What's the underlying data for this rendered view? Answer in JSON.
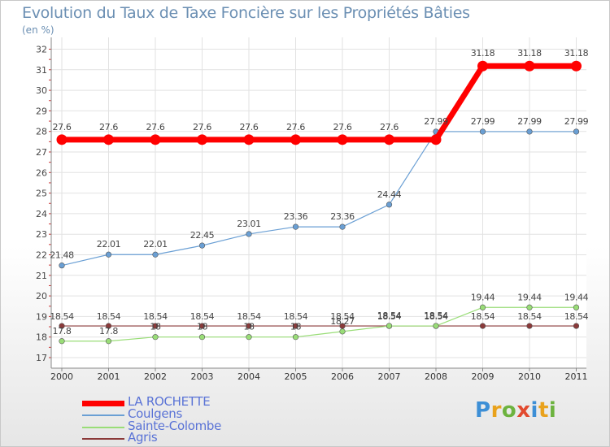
{
  "title": "Evolution du Taux de Taxe Foncière sur les Propriétés Bâties",
  "unit": "(en %)",
  "chart_data": {
    "type": "line",
    "x": [
      "2000",
      "2001",
      "2002",
      "2003",
      "2004",
      "2005",
      "2006",
      "2007",
      "2008",
      "2009",
      "2010",
      "2011"
    ],
    "ylim": [
      16.5,
      32
    ],
    "yticks": [
      17,
      18,
      19,
      20,
      21,
      22,
      23,
      24,
      25,
      26,
      27,
      28,
      29,
      30,
      31,
      32
    ],
    "grid": true,
    "legend_position": "bottom-left",
    "series": [
      {
        "name": "LA ROCHETTE",
        "color": "#ff0000",
        "width": 7,
        "values": [
          27.6,
          27.6,
          27.6,
          27.6,
          27.6,
          27.6,
          27.6,
          27.6,
          27.6,
          31.18,
          31.18,
          31.18
        ],
        "labels": [
          "27.6",
          "27.6",
          "27.6",
          "27.6",
          "27.6",
          "27.6",
          "27.6",
          "27.6",
          "",
          "31.18",
          "31.18",
          "31.18"
        ]
      },
      {
        "name": "Coulgens",
        "color": "#6a9fd4",
        "width": 1.2,
        "values": [
          21.48,
          22.01,
          22.01,
          22.45,
          23.01,
          23.36,
          23.36,
          24.44,
          27.99,
          27.99,
          27.99,
          27.99
        ],
        "labels": [
          "21.48",
          "22.01",
          "22.01",
          "22.45",
          "23.01",
          "23.36",
          "23.36",
          "24.44",
          "27.99",
          "27.99",
          "27.99",
          "27.99"
        ]
      },
      {
        "name": "Sainte-Colombe",
        "color": "#99dd77",
        "width": 1.2,
        "values": [
          17.8,
          17.8,
          18,
          18,
          18,
          18,
          18.27,
          18.54,
          18.54,
          19.44,
          19.44,
          19.44
        ],
        "labels": [
          "17.8",
          "17.8",
          "18",
          "18",
          "18",
          "18",
          "18.27",
          "18.54",
          "18.54",
          "19.44",
          "19.44",
          "19.44"
        ]
      },
      {
        "name": "Agris",
        "color": "#8b3a3a",
        "width": 1.2,
        "values": [
          18.54,
          18.54,
          18.54,
          18.54,
          18.54,
          18.54,
          18.54,
          18.54,
          18.54,
          18.54,
          18.54,
          18.54
        ],
        "labels": [
          "18.54",
          "18.54",
          "18.54",
          "18.54",
          "18.54",
          "18.54",
          "18.54",
          "18.54",
          "18.54",
          "18.54",
          "18.54",
          "18.54"
        ]
      }
    ]
  },
  "logo": {
    "letters": [
      "P",
      "r",
      "o",
      "x",
      "i",
      "t",
      "i"
    ],
    "colors": [
      "#3d8fd6",
      "#e9a21c",
      "#6db33f",
      "#e24a2f",
      "#3d8fd6",
      "#e9a21c",
      "#6db33f"
    ]
  }
}
